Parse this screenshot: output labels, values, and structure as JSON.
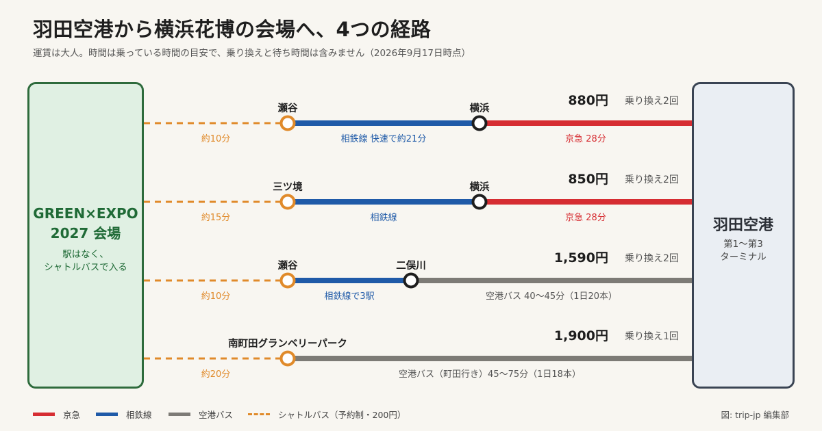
{
  "header": {
    "title": "羽田空港から横浜花博の会場へ、4つの経路",
    "subtitle": "運賃は大人。時間は乗っている時間の目安で、乗り換えと待ち時間は含みません（2026年9月17日時点）"
  },
  "left_box": {
    "name_lines": [
      "GREEN×EXPO",
      "2027 会場"
    ],
    "note_lines": [
      "駅はなく、",
      "シャトルバスで入る"
    ]
  },
  "right_box": {
    "name": "羽田空港",
    "sub_lines": [
      "第1〜第3",
      "ターミナル"
    ]
  },
  "colors": {
    "keikyu": "#d62d32",
    "sotetsu": "#1f5aa8",
    "bus": "#7d7b76",
    "shuttle": "#e08a2a"
  },
  "routes": [
    {
      "price": "880円",
      "transfers": "乗り換え2回",
      "stations": [
        "瀬谷",
        "横浜"
      ],
      "segments": [
        {
          "type": "shuttle",
          "label": "約10分"
        },
        {
          "type": "sotetsu",
          "label": "相鉄線 快速で約21分"
        },
        {
          "type": "keikyu",
          "label": "京急 28分"
        }
      ]
    },
    {
      "price": "850円",
      "transfers": "乗り換え2回",
      "stations": [
        "三ツ境",
        "横浜"
      ],
      "segments": [
        {
          "type": "shuttle",
          "label": "約15分"
        },
        {
          "type": "sotetsu",
          "label": "相鉄線"
        },
        {
          "type": "keikyu",
          "label": "京急 28分"
        }
      ]
    },
    {
      "price": "1,590円",
      "transfers": "乗り換え2回",
      "stations": [
        "瀬谷",
        "二俣川"
      ],
      "segments": [
        {
          "type": "shuttle",
          "label": "約10分"
        },
        {
          "type": "sotetsu",
          "label": "相鉄線で3駅"
        },
        {
          "type": "bus",
          "label": "空港バス 40〜45分（1日20本）"
        }
      ]
    },
    {
      "price": "1,900円",
      "transfers": "乗り換え1回",
      "stations": [
        "南町田グランベリーパーク"
      ],
      "segments": [
        {
          "type": "shuttle",
          "label": "約20分"
        },
        {
          "type": "bus",
          "label": "空港バス（町田行き）45〜75分（1日18本）"
        }
      ]
    }
  ],
  "legend": [
    {
      "type": "keikyu",
      "label": "京急"
    },
    {
      "type": "sotetsu",
      "label": "相鉄線"
    },
    {
      "type": "bus",
      "label": "空港バス"
    },
    {
      "type": "shuttle",
      "label": "シャトルバス（予約制・200円）"
    }
  ],
  "credit": "図: trip-jp 編集部"
}
